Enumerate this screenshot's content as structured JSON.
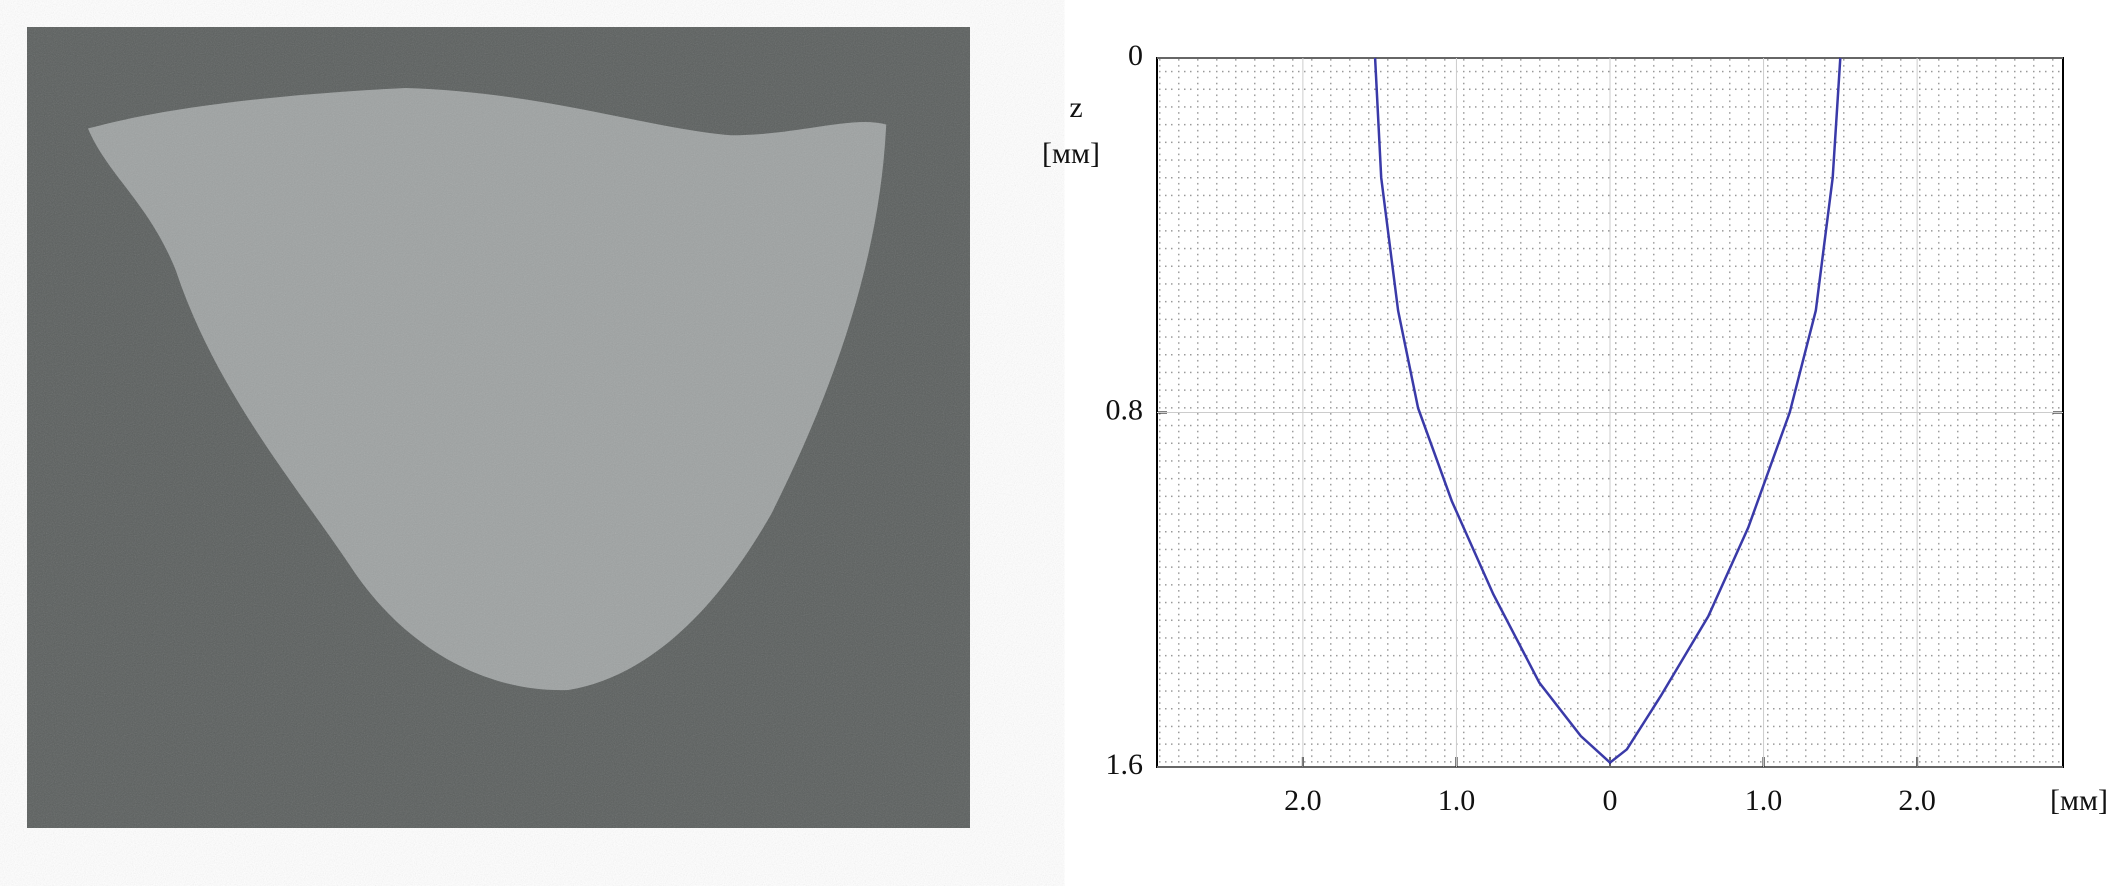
{
  "chart_data": {
    "type": "line",
    "y_label": "z",
    "y_unit": "[мм]",
    "x_unit": "[мм]",
    "xlim": [
      -2.95,
      2.95
    ],
    "ylim": [
      1.6,
      0
    ],
    "xticks": [
      {
        "value": -2,
        "label": "2.0"
      },
      {
        "value": -1,
        "label": "1.0"
      },
      0,
      {
        "value": 1,
        "label": "1.0"
      },
      {
        "value": 2,
        "label": "2.0"
      }
    ],
    "yticks": [
      0,
      0.8,
      1.6
    ],
    "grid": true,
    "series": [
      {
        "color": "#3a3aa8",
        "x": [
          -1.53,
          -1.49,
          -1.38,
          -1.25,
          -1.03,
          -0.76,
          -0.46,
          -0.19,
          0,
          0.11,
          0.33,
          0.64,
          0.9,
          1.17,
          1.34,
          1.45,
          1.5
        ],
        "values": [
          0,
          0.27,
          0.57,
          0.79,
          1.0,
          1.21,
          1.41,
          1.53,
          1.59,
          1.56,
          1.44,
          1.26,
          1.06,
          0.8,
          0.57,
          0.27,
          0
        ]
      }
    ]
  }
}
